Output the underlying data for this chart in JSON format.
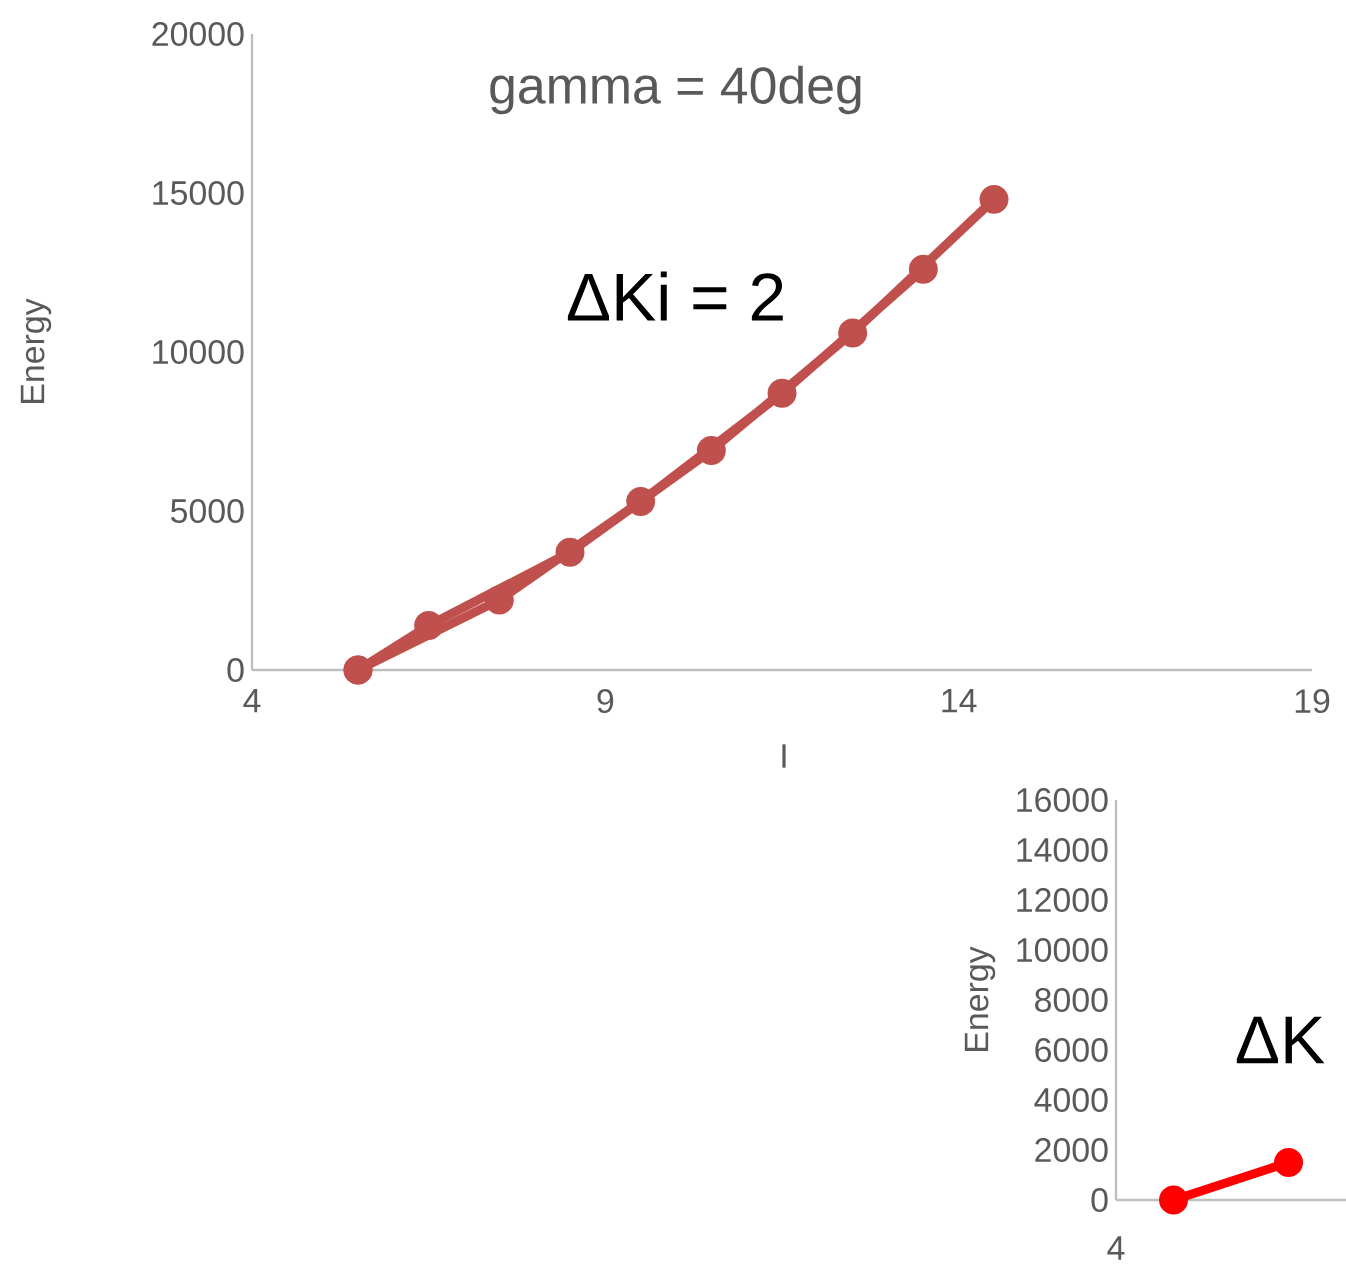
{
  "chart_data": [
    {
      "type": "line",
      "title": "gamma = 40deg",
      "xlabel": "I",
      "ylabel": "Energy",
      "annotations": [
        "ΔKi = 2"
      ],
      "xlim": [
        4,
        19
      ],
      "xticks": [
        4,
        9,
        14,
        19
      ],
      "ylim": [
        0,
        20000
      ],
      "yticks": [
        0,
        5000,
        10000,
        15000,
        20000
      ],
      "marker": "circle",
      "series": [
        {
          "color": "#c0504d",
          "x": [
            5.5,
            7.5,
            9.5,
            11.5,
            13.5
          ],
          "values": [
            0,
            2200,
            5300,
            8700,
            12600
          ]
        },
        {
          "color": "#c0504d",
          "x": [
            5.5,
            6.5,
            8.5,
            10.5,
            12.5,
            14.5
          ],
          "values": [
            0,
            1400,
            3700,
            6900,
            10600,
            14800
          ]
        }
      ]
    },
    {
      "type": "line",
      "ylabel": "Energy",
      "annotations": [
        "ΔK",
        "4"
      ],
      "categories": [
        null,
        null
      ],
      "ylim": [
        0,
        16000
      ],
      "yticks": [
        0,
        2000,
        4000,
        6000,
        8000,
        10000,
        12000,
        14000,
        16000
      ],
      "marker": "circle",
      "series": [
        {
          "color": "#ff0000",
          "values": [
            0,
            1500
          ]
        }
      ]
    }
  ]
}
